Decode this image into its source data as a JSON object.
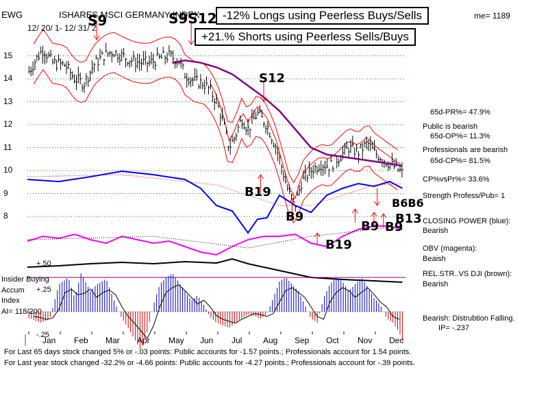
{
  "header": {
    "ticker": "EWG",
    "fund_name": "ISHARES MSCI GERMANY INDEX",
    "date_range": "12/ 20/ 1- 12/ 31/ 2",
    "volume_label": "me= 1189",
    "longs_box": "-12% Longs using Peerless Buys/Sells",
    "shorts_box": "+21.% Shorts using Peerless Sells/Buys"
  },
  "signals": {
    "s9": "S9",
    "s9s12": "S9S12",
    "s12": "S12",
    "b19_mid": "B19",
    "b9_oct": "B9",
    "b19_low": "B19",
    "b9_nov": "B9",
    "b9_dec": "B9",
    "b13": "B13",
    "b6b6": "B6B6"
  },
  "right_panel": {
    "pr": "65d-PR%= 47.9%",
    "public_status": "Public is bearish",
    "op": "65d-OP%= 11.3%",
    "pro_status": "Professionals are bearish",
    "cp": "65d-CP%= 81.5%",
    "cpvspr": "CP%vsPr%=  33.6%",
    "strength": "Strength Profess/Pub= 1",
    "closing_power_label": "CLOSING POWER (blue):",
    "closing_power_value": "Bearish",
    "obv_label": "OBV (magenta):",
    "obv_value": "Beaish",
    "relstr_label": "REL.STR..VS DJI (brown):",
    "relstr_value": "Bearish",
    "accum_status": "Bearish: Distrubtion Falling.",
    "ip": "IP= -.237"
  },
  "left_panel": {
    "insider": "Insider Buying",
    "accum": "Accum",
    "index": "Index",
    "ai": "AI= 118/200",
    "plus50": "+.50",
    "plus25": "+.25",
    "minus25": "-.25"
  },
  "footer": {
    "line1": "For Last 65 days stock changed  5% or -.03 points:  Public accounts for -1.57 points.;  Professionals account for  1.54 points.",
    "line2": "For Last year stock changed -32.2% or -4.66 points:  Public accounts for -4.27 points.;  Professionals account for -.39 points."
  },
  "colors": {
    "price": "#000000",
    "ma": "#800080",
    "band": "#ff0000",
    "closing_power": "#0000ff",
    "obv": "#ff00ff",
    "relstr": "#000000",
    "grid": "#008000",
    "accum_pos": "#0000cc",
    "accum_neg": "#cc0000"
  },
  "chart_data": {
    "type": "line",
    "title": "ISHARES MSCI GERMANY INDEX (EWG)",
    "x_months": [
      "Jan",
      "Feb",
      "Mar",
      "Apr",
      "May",
      "Jun",
      "Jul",
      "Aug",
      "Sep",
      "Oct",
      "Nov",
      "Dec"
    ],
    "y_ticks": [
      8,
      9,
      10,
      11,
      12,
      13,
      14,
      15
    ],
    "ylim": [
      7.5,
      15.5
    ],
    "series": [
      {
        "name": "EWG close",
        "x": [
          0,
          0.3,
          0.5,
          0.8,
          1.2,
          1.5,
          1.8,
          2.1,
          2.4,
          2.7,
          3.0,
          3.3,
          3.6,
          3.9,
          4.2,
          4.5,
          4.8,
          5.0,
          5.3,
          5.6,
          5.8,
          6.0,
          6.2,
          6.4,
          6.6,
          6.8,
          7.0,
          7.3,
          7.6,
          7.9,
          8.1,
          8.3,
          8.5,
          8.7,
          9.0,
          9.3,
          9.6,
          9.9,
          10.2,
          10.5,
          10.8,
          11.0,
          11.3,
          11.6,
          11.9
        ],
        "values": [
          14.2,
          14.9,
          15.3,
          14.7,
          14.6,
          14.0,
          13.8,
          14.6,
          15.0,
          15.2,
          15.0,
          14.8,
          14.7,
          14.7,
          14.9,
          15.0,
          14.8,
          14.2,
          13.9,
          13.8,
          13.5,
          13.0,
          12.2,
          11.0,
          11.5,
          12.3,
          11.8,
          12.5,
          12.0,
          11.0,
          10.0,
          9.0,
          8.5,
          9.5,
          10.0,
          10.3,
          10.2,
          10.6,
          11.0,
          10.8,
          11.2,
          10.8,
          10.5,
          10.2,
          9.9
        ]
      },
      {
        "name": "Moving average",
        "x": [
          4.6,
          5.0,
          5.5,
          6.0,
          6.5,
          7.0,
          7.5,
          8.0,
          8.5,
          9.0,
          9.5,
          10.0,
          10.5,
          11.0,
          11.5,
          11.9
        ],
        "values": [
          14.7,
          14.8,
          14.7,
          14.5,
          14.2,
          13.7,
          13.2,
          12.6,
          11.8,
          11.0,
          10.7,
          10.6,
          10.5,
          10.4,
          10.3,
          10.2
        ]
      }
    ],
    "accumulation_index": {
      "ylim": [
        -0.3,
        0.55
      ],
      "ticks": [
        0.5,
        0.25,
        -0.25
      ],
      "x": [
        0.1,
        0.4,
        0.7,
        1.0,
        1.3,
        1.5,
        1.7,
        2.0,
        2.2,
        2.5,
        2.8,
        3.0,
        3.2,
        3.4,
        3.6,
        3.8,
        4.0,
        4.2,
        4.4,
        4.6,
        4.8,
        5.0,
        5.2,
        5.4,
        5.6,
        5.8,
        6.0,
        6.2,
        6.4,
        6.6,
        6.8,
        7.0,
        7.2,
        7.4,
        7.6,
        7.8,
        8.0,
        8.2,
        8.4,
        8.6,
        8.8,
        9.0,
        9.2,
        9.4,
        9.6,
        9.8,
        10.0,
        10.2,
        10.4,
        10.6,
        10.8,
        11.0,
        11.2,
        11.4,
        11.6,
        11.8,
        11.95
      ],
      "values": [
        -0.05,
        -0.08,
        -0.06,
        0.2,
        0.25,
        0.1,
        0.28,
        0.15,
        0.2,
        0.24,
        0.05,
        -0.05,
        -0.12,
        -0.2,
        -0.28,
        -0.15,
        0.05,
        0.2,
        0.25,
        0.28,
        0.22,
        0.15,
        0.08,
        0.12,
        0.05,
        -0.04,
        -0.08,
        -0.1,
        -0.12,
        -0.08,
        -0.05,
        -0.02,
        -0.03,
        -0.05,
        -0.02,
        0.1,
        0.22,
        0.25,
        0.2,
        0.15,
        0.05,
        -0.05,
        -0.08,
        0.1,
        0.2,
        0.25,
        0.22,
        0.15,
        0.2,
        0.25,
        0.18,
        0.1,
        0.05,
        -0.05,
        -0.08,
        -0.15,
        -0.25
      ]
    }
  }
}
